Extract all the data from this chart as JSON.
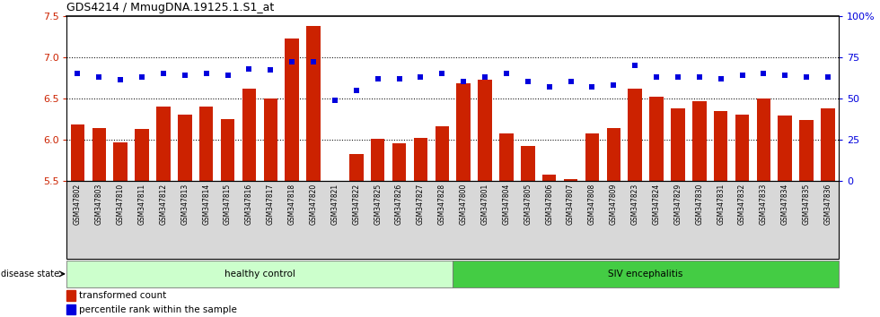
{
  "title": "GDS4214 / MmugDNA.19125.1.S1_at",
  "samples": [
    "GSM347802",
    "GSM347803",
    "GSM347810",
    "GSM347811",
    "GSM347812",
    "GSM347813",
    "GSM347814",
    "GSM347815",
    "GSM347816",
    "GSM347817",
    "GSM347818",
    "GSM347820",
    "GSM347821",
    "GSM347822",
    "GSM347825",
    "GSM347826",
    "GSM347827",
    "GSM347828",
    "GSM347800",
    "GSM347801",
    "GSM347804",
    "GSM347805",
    "GSM347806",
    "GSM347807",
    "GSM347808",
    "GSM347809",
    "GSM347823",
    "GSM347824",
    "GSM347829",
    "GSM347830",
    "GSM347831",
    "GSM347832",
    "GSM347833",
    "GSM347834",
    "GSM347835",
    "GSM347836"
  ],
  "bar_values": [
    6.18,
    6.14,
    5.97,
    6.13,
    6.4,
    6.3,
    6.4,
    6.25,
    6.62,
    6.5,
    7.22,
    7.38,
    5.5,
    5.82,
    6.01,
    5.95,
    6.02,
    6.16,
    6.68,
    6.72,
    6.07,
    5.92,
    5.57,
    5.52,
    6.07,
    6.14,
    6.62,
    6.52,
    6.38,
    6.47,
    6.34,
    6.3,
    6.5,
    6.29,
    6.24,
    6.38
  ],
  "blue_values": [
    65,
    63,
    61,
    63,
    65,
    64,
    65,
    64,
    68,
    67,
    72,
    72,
    49,
    55,
    62,
    62,
    63,
    65,
    60,
    63,
    65,
    60,
    57,
    60,
    57,
    58,
    70,
    63,
    63,
    63,
    62,
    64,
    65,
    64,
    63,
    63
  ],
  "ylim_left": [
    5.5,
    7.5
  ],
  "ylim_right": [
    0,
    100
  ],
  "yticks_left": [
    5.5,
    6.0,
    6.5,
    7.0,
    7.5
  ],
  "yticks_right": [
    0,
    25,
    50,
    75,
    100
  ],
  "ytick_labels_right": [
    "0",
    "25",
    "50",
    "75",
    "100%"
  ],
  "bar_color": "#cc2200",
  "dot_color": "#0000dd",
  "healthy_label": "healthy control",
  "siv_label": "SIV encephalitis",
  "healthy_count": 18,
  "legend_bar": "transformed count",
  "legend_dot": "percentile rank within the sample",
  "disease_state_label": "disease state",
  "healthy_bg": "#ccffcc",
  "siv_bg": "#44cc44",
  "grid_yticks": [
    6.0,
    6.5,
    7.0
  ],
  "label_area_bg": "#d8d8d8"
}
